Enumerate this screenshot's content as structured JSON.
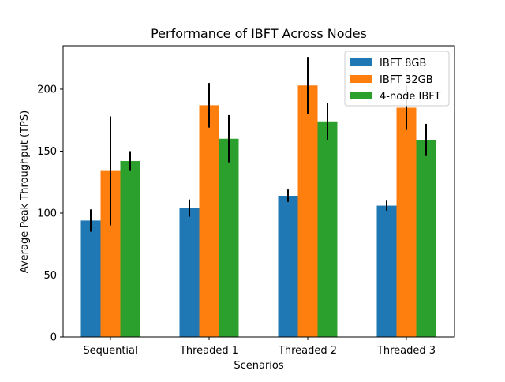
{
  "chart_data": {
    "type": "bar",
    "title": "Performance of IBFT Across Nodes",
    "xlabel": "Scenarios",
    "ylabel": "Average Peak Throughput (TPS)",
    "categories": [
      "Sequential",
      "Threaded 1",
      "Threaded 2",
      "Threaded 3"
    ],
    "ylim": [
      0,
      235
    ],
    "yticks": [
      0,
      50,
      100,
      150,
      200
    ],
    "legend_position": "top-right",
    "series": [
      {
        "name": "IBFT 8GB",
        "color": "#1f77b4",
        "values": [
          94,
          104,
          114,
          106
        ],
        "errors": [
          9,
          7,
          5,
          4
        ]
      },
      {
        "name": "IBFT 32GB",
        "color": "#ff7f0e",
        "values": [
          134,
          187,
          203,
          185
        ],
        "errors": [
          44,
          18,
          23,
          18
        ]
      },
      {
        "name": "4-node IBFT",
        "color": "#2ca02c",
        "values": [
          142,
          160,
          174,
          159
        ],
        "errors": [
          8,
          19,
          15,
          13
        ]
      }
    ]
  }
}
